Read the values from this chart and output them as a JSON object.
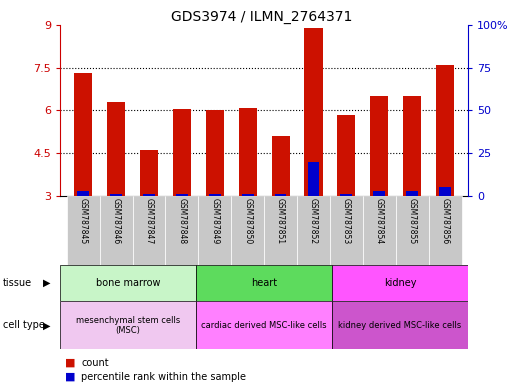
{
  "title": "GDS3974 / ILMN_2764371",
  "samples": [
    "GSM787845",
    "GSM787846",
    "GSM787847",
    "GSM787848",
    "GSM787849",
    "GSM787850",
    "GSM787851",
    "GSM787852",
    "GSM787853",
    "GSM787854",
    "GSM787855",
    "GSM787856"
  ],
  "red_values": [
    7.3,
    6.3,
    4.6,
    6.05,
    6.0,
    6.1,
    5.1,
    8.9,
    5.85,
    6.5,
    6.5,
    7.6
  ],
  "blue_values": [
    3.0,
    1.0,
    1.0,
    1.0,
    1.0,
    1.0,
    1.0,
    20.0,
    1.0,
    3.0,
    3.0,
    5.0
  ],
  "y_min": 3,
  "y_max": 9,
  "y_ticks_left": [
    3,
    4.5,
    6,
    7.5,
    9
  ],
  "y_ticks_right": [
    0,
    25,
    50,
    75,
    100
  ],
  "tissue_groups": [
    {
      "label": "bone marrow",
      "start": 0,
      "end": 3,
      "color": "#c8f5c8"
    },
    {
      "label": "heart",
      "start": 4,
      "end": 7,
      "color": "#5ddb5d"
    },
    {
      "label": "kidney",
      "start": 8,
      "end": 11,
      "color": "#ff55ff"
    }
  ],
  "cell_type_groups": [
    {
      "label": "mesenchymal stem cells\n(MSC)",
      "start": 0,
      "end": 3,
      "color": "#f0c8f0"
    },
    {
      "label": "cardiac derived MSC-like cells",
      "start": 4,
      "end": 7,
      "color": "#ff80ff"
    },
    {
      "label": "kidney derived MSC-like cells",
      "start": 8,
      "end": 11,
      "color": "#cc55cc"
    }
  ],
  "bar_color_red": "#cc1100",
  "bar_color_blue": "#0000cc",
  "background_color": "#ffffff",
  "tick_color_left": "#cc0000",
  "tick_color_right": "#0000cc",
  "bar_width": 0.55,
  "sample_box_color": "#c8c8c8",
  "grid_yticks": [
    4.5,
    6.0,
    7.5
  ]
}
